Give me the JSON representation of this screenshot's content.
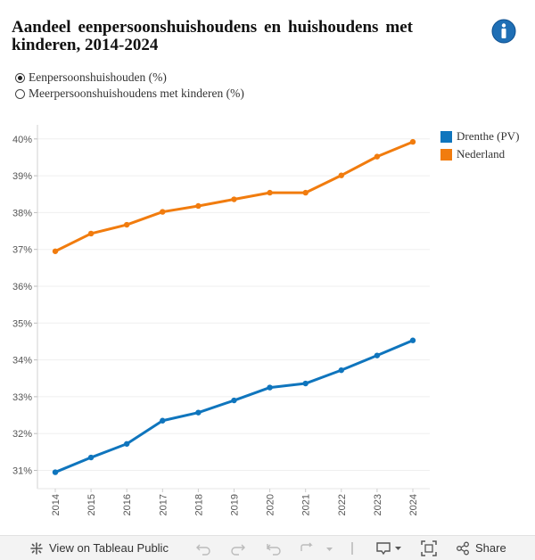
{
  "title": "Aandeel eenpersoonshuishoudens en huishoudens met kinderen, 2014-2024",
  "options": [
    {
      "label": "Eenpersoonshuishouden (%)",
      "selected": true
    },
    {
      "label": "Meerpersoonshuishoudens met kinderen (%)",
      "selected": false
    }
  ],
  "legend": [
    {
      "label": "Drenthe (PV)",
      "color": "#0f75bd"
    },
    {
      "label": "Nederland",
      "color": "#f17c0e"
    }
  ],
  "chart_data": {
    "type": "line",
    "x": [
      "2014",
      "2015",
      "2016",
      "2017",
      "2018",
      "2019",
      "2020",
      "2021",
      "2022",
      "2023",
      "2024"
    ],
    "series": [
      {
        "name": "Drenthe (PV)",
        "color": "#0f75bd",
        "values": [
          30.95,
          31.35,
          31.72,
          32.35,
          32.57,
          32.9,
          33.25,
          33.36,
          33.72,
          34.12,
          34.53
        ]
      },
      {
        "name": "Nederland",
        "color": "#f17c0e",
        "values": [
          36.95,
          37.43,
          37.67,
          38.02,
          38.18,
          38.36,
          38.54,
          38.54,
          39.01,
          39.52,
          39.92
        ]
      }
    ],
    "yticks": [
      "31%",
      "32%",
      "33%",
      "34%",
      "35%",
      "36%",
      "37%",
      "38%",
      "39%",
      "40%"
    ],
    "ylim": [
      30.6,
      40.3
    ],
    "grid": true
  },
  "toolbar": {
    "view_label": "View on Tableau Public",
    "share_label": "Share"
  }
}
